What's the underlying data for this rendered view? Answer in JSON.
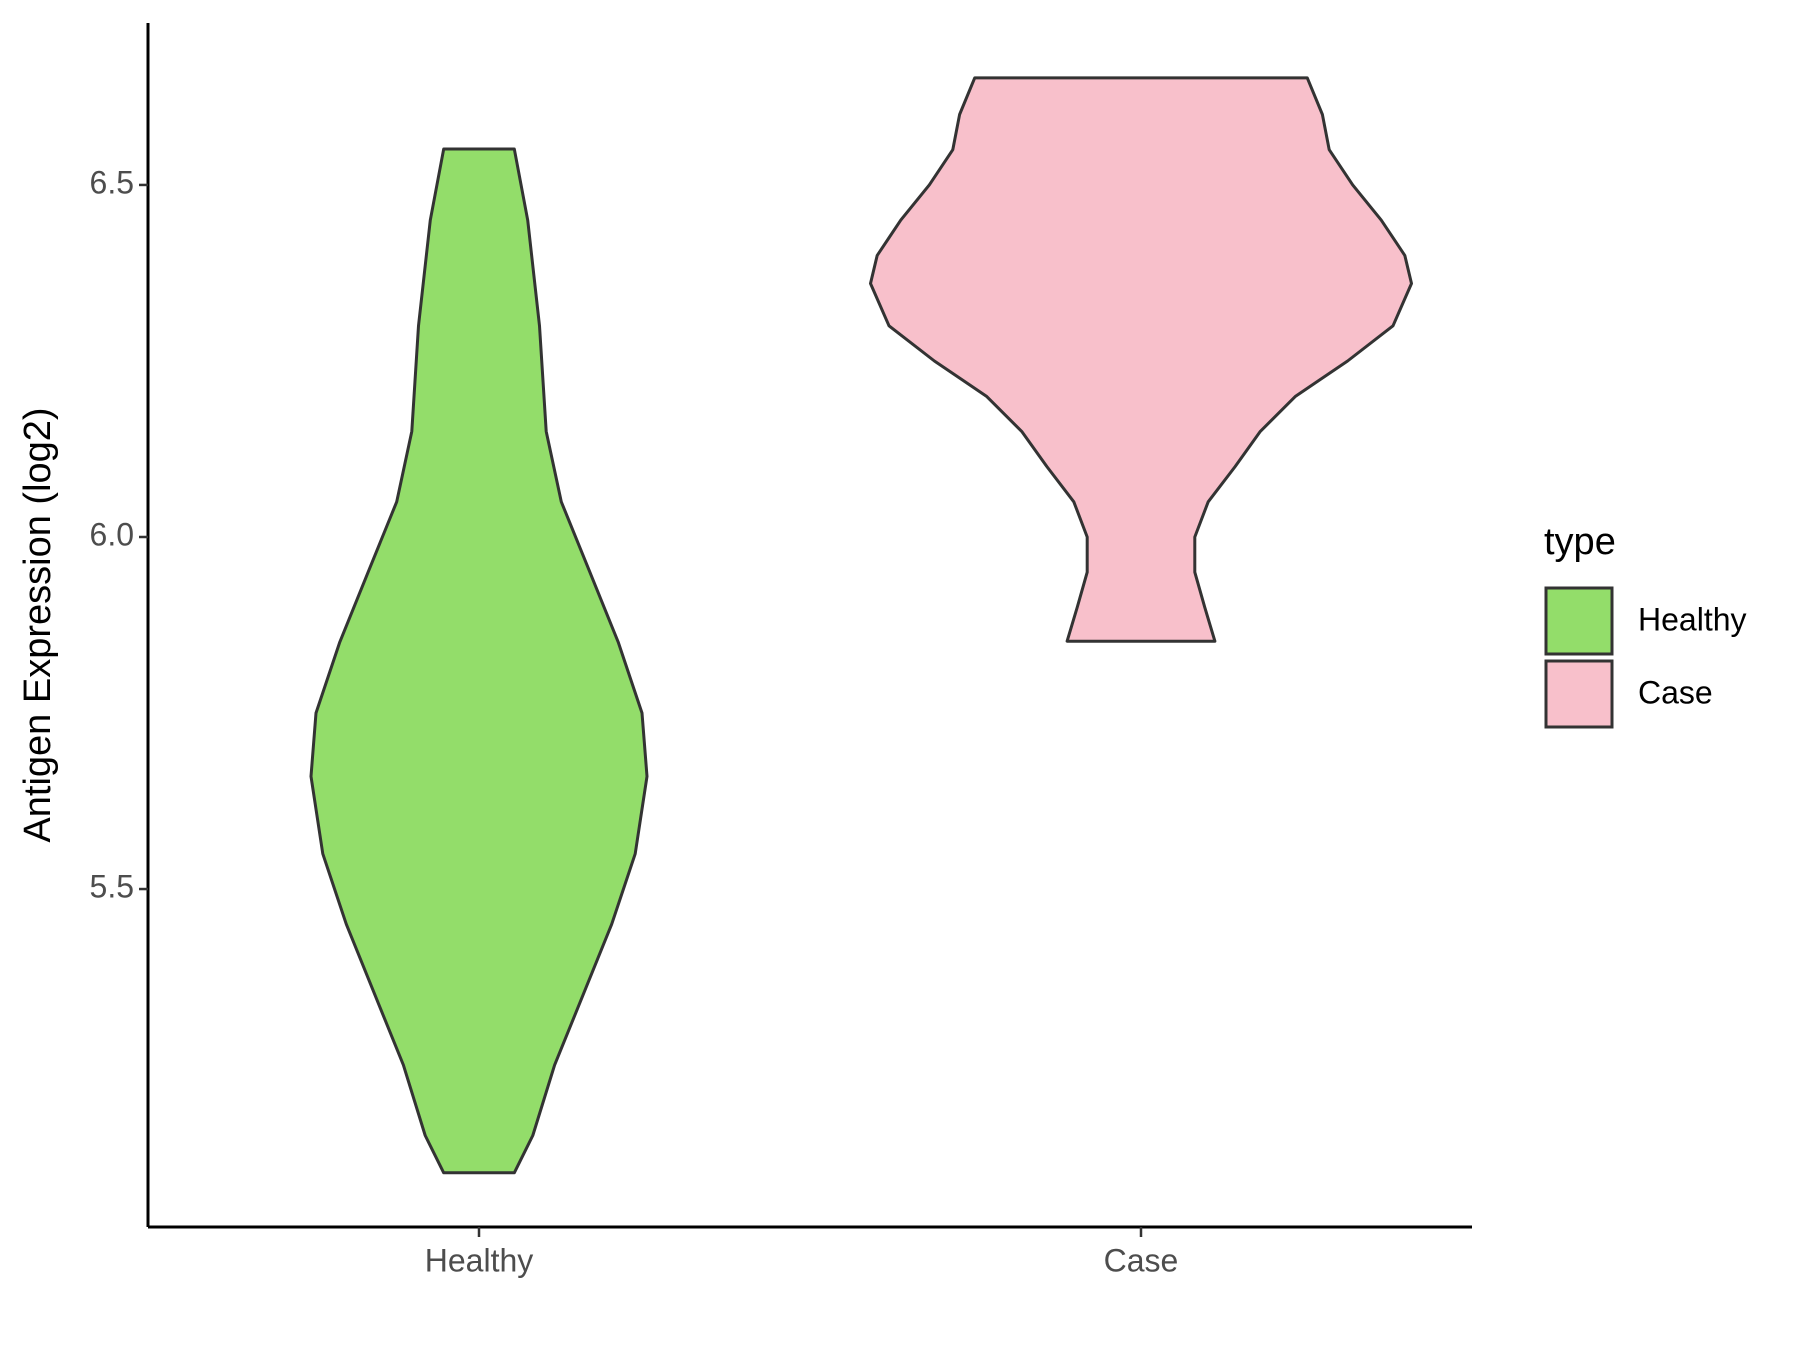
{
  "chart_data": {
    "type": "violin",
    "y_label": "Antigen Expression (log2)",
    "categories": [
      "Healthy",
      "Case"
    ],
    "ylim": [
      5.02,
      6.73
    ],
    "yticks": [
      5.5,
      {
        "value": 6,
        "label": "6.0"
      },
      6.5
    ],
    "legend_title": "type",
    "legend_position": "right",
    "series": [
      {
        "name": "Healthy",
        "color": "#93dd6a",
        "y": [
          6.551,
          6.45,
          6.3,
          6.15,
          6.05,
          5.95,
          5.85,
          5.75,
          5.66,
          5.55,
          5.45,
          5.35,
          5.25,
          5.15,
          5.097
        ],
        "width": [
          0.21,
          0.29,
          0.36,
          0.4,
          0.49,
          0.66,
          0.83,
          0.97,
          1.0,
          0.93,
          0.79,
          0.62,
          0.45,
          0.32,
          0.21
        ]
      },
      {
        "name": "Case",
        "color": "#f8c0cb",
        "y": [
          6.652,
          6.6,
          6.55,
          6.5,
          6.45,
          6.4,
          6.36,
          6.3,
          6.25,
          6.2,
          6.15,
          6.1,
          6.05,
          6.0,
          5.95,
          5.9,
          5.852
        ],
        "width": [
          0.99,
          1.08,
          1.12,
          1.26,
          1.43,
          1.57,
          1.61,
          1.5,
          1.23,
          0.92,
          0.71,
          0.56,
          0.4,
          0.32,
          0.32,
          0.38,
          0.44
        ]
      }
    ]
  }
}
